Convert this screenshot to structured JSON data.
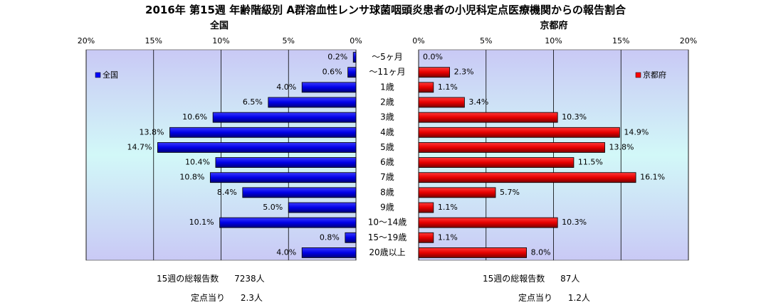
{
  "title": "2016年 第15週 年齢階級別 A群溶血性レンサ球菌咽頭炎患者の小児科定点医療機関からの報告割合",
  "chart_data": {
    "type": "bar",
    "categories": [
      "〜5ヶ月",
      "〜11ヶ月",
      "1歳",
      "2歳",
      "3歳",
      "4歳",
      "5歳",
      "6歳",
      "7歳",
      "8歳",
      "9歳",
      "10〜14歳",
      "15〜19歳",
      "20歳以上"
    ],
    "panels": [
      {
        "subtitle": "全国",
        "legend": "全国",
        "legend_position": "top-left",
        "direction": "left",
        "color": "#0000ff",
        "values": [
          0.2,
          0.6,
          4.0,
          6.5,
          10.6,
          13.8,
          14.7,
          10.4,
          10.8,
          8.4,
          5.0,
          10.1,
          0.8,
          4.0
        ],
        "value_labels": [
          "0.2%",
          "0.6%",
          "4.0%",
          "6.5%",
          "10.6%",
          "13.8%",
          "14.7%",
          "10.4%",
          "10.8%",
          "8.4%",
          "5.0%",
          "10.1%",
          "0.8%",
          "4.0%"
        ],
        "xlim": [
          0,
          20
        ],
        "ticks": [
          20,
          15,
          10,
          5,
          0
        ],
        "tick_labels": [
          "20%",
          "15%",
          "10%",
          "5%",
          "0%"
        ]
      },
      {
        "subtitle": "京都府",
        "legend": "京都府",
        "legend_position": "top-right",
        "direction": "right",
        "color": "#ff0000",
        "values": [
          0.0,
          2.3,
          1.1,
          3.4,
          10.3,
          14.9,
          13.8,
          11.5,
          16.1,
          5.7,
          1.1,
          10.3,
          1.1,
          8.0
        ],
        "value_labels": [
          "0.0%",
          "2.3%",
          "1.1%",
          "3.4%",
          "10.3%",
          "14.9%",
          "13.8%",
          "11.5%",
          "16.1%",
          "5.7%",
          "1.1%",
          "10.3%",
          "1.1%",
          "8.0%"
        ],
        "xlim": [
          0,
          20
        ],
        "ticks": [
          0,
          5,
          10,
          15,
          20
        ],
        "tick_labels": [
          "0%",
          "5%",
          "10%",
          "15%",
          "20%"
        ]
      }
    ],
    "grid": true
  },
  "stats": {
    "national": {
      "total_label": "15週の総報告数",
      "total_value": "7238人",
      "per_label": "定点当り",
      "per_value": "2.3人"
    },
    "kyoto": {
      "total_label": "15週の総報告数",
      "total_value": "87人",
      "per_label": "定点当り",
      "per_value": "1.2人"
    }
  }
}
